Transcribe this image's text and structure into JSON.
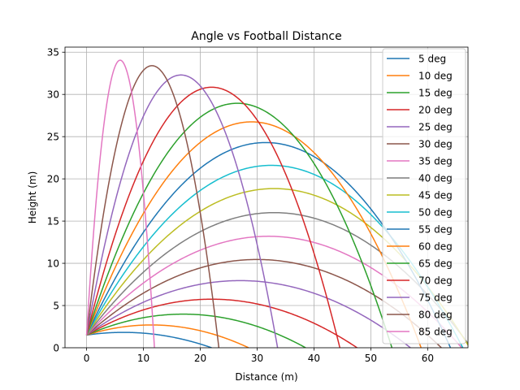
{
  "chart_data": {
    "type": "line",
    "title": "Angle vs Football Distance",
    "xlabel": "Distance (m)",
    "ylabel": "Height (m)",
    "xlim": [
      -3.8,
      67.1
    ],
    "ylim": [
      0,
      35.6
    ],
    "xticks": [
      0,
      10,
      20,
      30,
      40,
      50,
      60
    ],
    "yticks": [
      0,
      5,
      10,
      15,
      20,
      25,
      30,
      35
    ],
    "grid": true,
    "legend_position": "upper-right",
    "launch_height_m": 1.5,
    "series": [
      {
        "name": "5 deg",
        "angle_deg": 5,
        "peak_x": 6.5,
        "peak_y": 1.82,
        "color": "#1f77b4"
      },
      {
        "name": "10 deg",
        "angle_deg": 10,
        "peak_x": 11.4,
        "peak_y": 2.7,
        "color": "#ff7f0e"
      },
      {
        "name": "15 deg",
        "angle_deg": 15,
        "peak_x": 17.0,
        "peak_y": 3.98,
        "color": "#2ca02c"
      },
      {
        "name": "20 deg",
        "angle_deg": 20,
        "peak_x": 22.0,
        "peak_y": 5.75,
        "color": "#d62728"
      },
      {
        "name": "25 deg",
        "angle_deg": 25,
        "peak_x": 27.0,
        "peak_y": 7.95,
        "color": "#9467bd"
      },
      {
        "name": "30 deg",
        "angle_deg": 30,
        "peak_x": 30.0,
        "peak_y": 10.45,
        "color": "#8c564b"
      },
      {
        "name": "35 deg",
        "angle_deg": 35,
        "peak_x": 32.0,
        "peak_y": 13.2,
        "color": "#e377c2"
      },
      {
        "name": "40 deg",
        "angle_deg": 40,
        "peak_x": 33.0,
        "peak_y": 16.0,
        "color": "#7f7f7f"
      },
      {
        "name": "45 deg",
        "angle_deg": 45,
        "peak_x": 33.0,
        "peak_y": 18.85,
        "color": "#bcbd22"
      },
      {
        "name": "50 deg",
        "angle_deg": 50,
        "peak_x": 32.5,
        "peak_y": 21.6,
        "color": "#17becf"
      },
      {
        "name": "55 deg",
        "angle_deg": 55,
        "peak_x": 31.5,
        "peak_y": 24.3,
        "color": "#1f77b4"
      },
      {
        "name": "60 deg",
        "angle_deg": 60,
        "peak_x": 29.0,
        "peak_y": 26.75,
        "color": "#ff7f0e"
      },
      {
        "name": "65 deg",
        "angle_deg": 65,
        "peak_x": 26.5,
        "peak_y": 28.95,
        "color": "#2ca02c"
      },
      {
        "name": "70 deg",
        "angle_deg": 70,
        "peak_x": 22.0,
        "peak_y": 30.85,
        "color": "#d62728"
      },
      {
        "name": "75 deg",
        "angle_deg": 75,
        "peak_x": 16.6,
        "peak_y": 32.3,
        "color": "#9467bd"
      },
      {
        "name": "80 deg",
        "angle_deg": 80,
        "peak_x": 11.5,
        "peak_y": 33.4,
        "color": "#8c564b"
      },
      {
        "name": "85 deg",
        "angle_deg": 85,
        "peak_x": 5.9,
        "peak_y": 34.05,
        "color": "#e377c2"
      }
    ]
  }
}
